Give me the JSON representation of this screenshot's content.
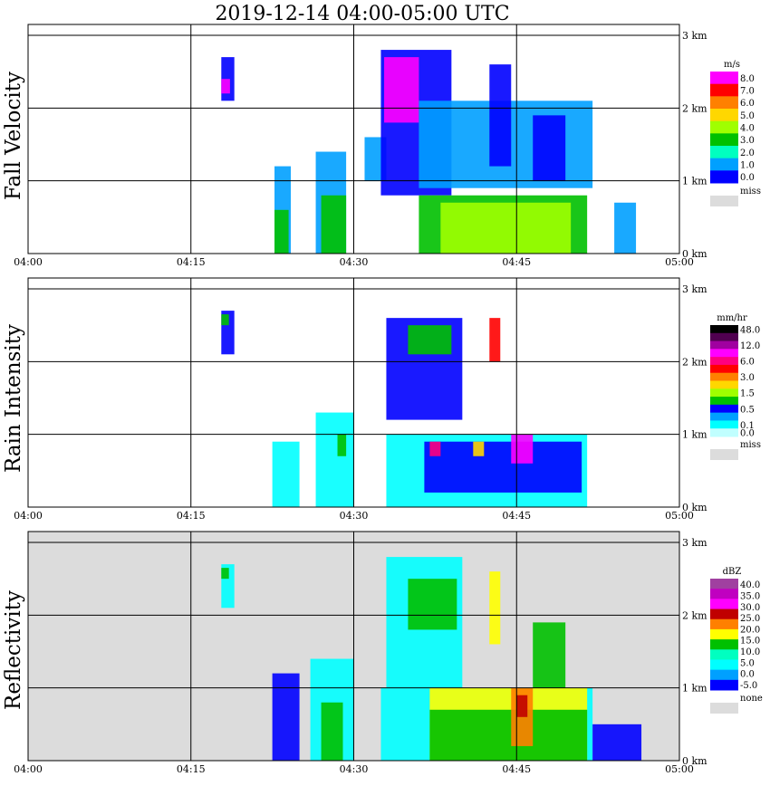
{
  "title": "2019-12-14   04:00-05:00 UTC",
  "x_ticks": [
    "04:00",
    "04:15",
    "04:30",
    "04:45",
    "05:00"
  ],
  "y_ticks": [
    "0 km",
    "1 km",
    "2 km",
    "3 km"
  ],
  "chart_data": [
    {
      "type": "heatmap",
      "ylabel": "Fall Velocity",
      "xlim": [
        "04:00",
        "05:00"
      ],
      "ylim_km": [
        0,
        3
      ],
      "grid": true,
      "colorbar": {
        "unit": "m/s",
        "labels": [
          "8.0",
          "7.0",
          "6.0",
          "5.0",
          "4.0",
          "3.0",
          "2.0",
          "1.0",
          "0.0"
        ],
        "colors": [
          "#ff00ff",
          "#ff0000",
          "#ff8000",
          "#ffd700",
          "#a0ff00",
          "#00c000",
          "#00ffc0",
          "#00a0ff",
          "#0000ff"
        ],
        "missing_label": "miss",
        "missing_color": "#dcdcdc"
      },
      "blobs": [
        {
          "t0": "04:17.8",
          "t1": "04:19.0",
          "h0": 2.1,
          "h1": 2.7,
          "color": "#0000ff"
        },
        {
          "t0": "04:17.8",
          "t1": "04:18.6",
          "h0": 2.2,
          "h1": 2.4,
          "color": "#ff00ff"
        },
        {
          "t0": "04:22.7",
          "t1": "04:24.2",
          "h0": 0.0,
          "h1": 1.2,
          "color": "#00a0ff"
        },
        {
          "t0": "04:22.7",
          "t1": "04:24.0",
          "h0": 0.0,
          "h1": 0.6,
          "color": "#00c000"
        },
        {
          "t0": "04:26.5",
          "t1": "04:29.3",
          "h0": 0.0,
          "h1": 1.4,
          "color": "#00a0ff"
        },
        {
          "t0": "04:27.0",
          "t1": "04:29.3",
          "h0": 0.0,
          "h1": 0.8,
          "color": "#00c000"
        },
        {
          "t0": "04:31.0",
          "t1": "04:33.0",
          "h0": 1.0,
          "h1": 1.6,
          "color": "#00a0ff"
        },
        {
          "t0": "04:32.5",
          "t1": "04:39.0",
          "h0": 0.8,
          "h1": 2.8,
          "color": "#0000ff"
        },
        {
          "t0": "04:32.8",
          "t1": "04:36.0",
          "h0": 1.8,
          "h1": 2.7,
          "color": "#ff00ff"
        },
        {
          "t0": "04:36.0",
          "t1": "04:52.0",
          "h0": 0.9,
          "h1": 2.1,
          "color": "#00a0ff"
        },
        {
          "t0": "04:36.0",
          "t1": "04:51.5",
          "h0": 0.0,
          "h1": 0.8,
          "color": "#00c000"
        },
        {
          "t0": "04:38.0",
          "t1": "04:50.0",
          "h0": 0.0,
          "h1": 0.7,
          "color": "#a0ff00"
        },
        {
          "t0": "04:42.5",
          "t1": "04:44.5",
          "h0": 1.2,
          "h1": 2.6,
          "color": "#0000ff"
        },
        {
          "t0": "04:46.5",
          "t1": "04:49.5",
          "h0": 1.0,
          "h1": 1.9,
          "color": "#0000ff"
        },
        {
          "t0": "04:54.0",
          "t1": "04:56.0",
          "h0": 0.0,
          "h1": 0.7,
          "color": "#00a0ff"
        }
      ]
    },
    {
      "type": "heatmap",
      "ylabel": "Rain Intensity",
      "xlim": [
        "04:00",
        "05:00"
      ],
      "ylim_km": [
        0,
        3
      ],
      "grid": true,
      "colorbar": {
        "unit": "mm/hr",
        "labels": [
          "48.0",
          "",
          "12.0",
          "",
          "6.0",
          "",
          "3.0",
          "",
          "1.5",
          "",
          "0.5",
          "",
          "0.1",
          "0.0"
        ],
        "colors": [
          "#000000",
          "#500050",
          "#a000a0",
          "#ff00ff",
          "#ff0080",
          "#ff0000",
          "#ff8000",
          "#ffd700",
          "#a0ff00",
          "#00c000",
          "#0000ff",
          "#00a0ff",
          "#00ffff",
          "#c0ffff"
        ],
        "missing_label": "miss",
        "missing_color": "#dcdcdc"
      },
      "blobs": [
        {
          "t0": "04:17.8",
          "t1": "04:19.0",
          "h0": 2.1,
          "h1": 2.7,
          "color": "#0000ff"
        },
        {
          "t0": "04:17.8",
          "t1": "04:18.5",
          "h0": 2.5,
          "h1": 2.65,
          "color": "#00c000"
        },
        {
          "t0": "04:22.5",
          "t1": "04:25.0",
          "h0": 0.0,
          "h1": 0.9,
          "color": "#00ffff"
        },
        {
          "t0": "04:26.5",
          "t1": "04:30.0",
          "h0": 0.0,
          "h1": 1.3,
          "color": "#00ffff"
        },
        {
          "t0": "04:28.5",
          "t1": "04:29.3",
          "h0": 0.7,
          "h1": 1.0,
          "color": "#00c000"
        },
        {
          "t0": "04:33.0",
          "t1": "04:51.5",
          "h0": 0.0,
          "h1": 1.0,
          "color": "#00ffff"
        },
        {
          "t0": "04:33.0",
          "t1": "04:40.0",
          "h0": 1.2,
          "h1": 2.6,
          "color": "#0000ff"
        },
        {
          "t0": "04:35.0",
          "t1": "04:39.0",
          "h0": 2.1,
          "h1": 2.5,
          "color": "#00c000"
        },
        {
          "t0": "04:36.5",
          "t1": "04:51.0",
          "h0": 0.2,
          "h1": 0.9,
          "color": "#0000ff"
        },
        {
          "t0": "04:37.0",
          "t1": "04:38.0",
          "h0": 0.7,
          "h1": 0.9,
          "color": "#ff0080"
        },
        {
          "t0": "04:41.0",
          "t1": "04:42.0",
          "h0": 0.7,
          "h1": 0.9,
          "color": "#ffd700"
        },
        {
          "t0": "04:44.5",
          "t1": "04:46.5",
          "h0": 0.6,
          "h1": 1.0,
          "color": "#ff00ff"
        },
        {
          "t0": "04:42.5",
          "t1": "04:43.5",
          "h0": 2.0,
          "h1": 2.6,
          "color": "#ff0000"
        }
      ]
    },
    {
      "type": "heatmap",
      "ylabel": "Reflectivity",
      "xlim": [
        "04:00",
        "05:00"
      ],
      "ylim_km": [
        0,
        3
      ],
      "grid": true,
      "background_color": "#dcdcdc",
      "colorbar": {
        "unit": "dBZ",
        "labels": [
          "40.0",
          "35.0",
          "30.0",
          "25.0",
          "20.0",
          "15.0",
          "10.0",
          "5.0",
          "0.0",
          "-5.0"
        ],
        "colors": [
          "#a040a0",
          "#c000c0",
          "#ff00ff",
          "#c00000",
          "#ff8000",
          "#ffff00",
          "#00c000",
          "#00ffc0",
          "#00ffff",
          "#00a0ff",
          "#0000ff"
        ],
        "missing_label": "none",
        "missing_color": "#dcdcdc"
      },
      "blobs": [
        {
          "t0": "04:17.8",
          "t1": "04:19.0",
          "h0": 2.1,
          "h1": 2.7,
          "color": "#00ffff"
        },
        {
          "t0": "04:17.8",
          "t1": "04:18.5",
          "h0": 2.5,
          "h1": 2.65,
          "color": "#00c000"
        },
        {
          "t0": "04:22.5",
          "t1": "04:25.0",
          "h0": 0.0,
          "h1": 1.2,
          "color": "#0000ff"
        },
        {
          "t0": "04:26.0",
          "t1": "04:30.0",
          "h0": 0.0,
          "h1": 1.4,
          "color": "#00ffff"
        },
        {
          "t0": "04:27.0",
          "t1": "04:29.0",
          "h0": 0.0,
          "h1": 0.8,
          "color": "#00c000"
        },
        {
          "t0": "04:32.5",
          "t1": "04:52.0",
          "h0": 0.0,
          "h1": 1.0,
          "color": "#00ffff"
        },
        {
          "t0": "04:33.0",
          "t1": "04:40.0",
          "h0": 1.0,
          "h1": 2.8,
          "color": "#00ffff"
        },
        {
          "t0": "04:35.0",
          "t1": "04:39.5",
          "h0": 1.8,
          "h1": 2.5,
          "color": "#00c000"
        },
        {
          "t0": "04:37.0",
          "t1": "04:51.5",
          "h0": 0.0,
          "h1": 1.0,
          "color": "#ffff00"
        },
        {
          "t0": "04:37.0",
          "t1": "04:51.5",
          "h0": 0.0,
          "h1": 0.7,
          "color": "#00c000"
        },
        {
          "t0": "04:44.5",
          "t1": "04:46.5",
          "h0": 0.2,
          "h1": 1.0,
          "color": "#ff8000"
        },
        {
          "t0": "04:45.0",
          "t1": "04:46.0",
          "h0": 0.6,
          "h1": 0.9,
          "color": "#c00000"
        },
        {
          "t0": "04:42.5",
          "t1": "04:43.5",
          "h0": 1.6,
          "h1": 2.6,
          "color": "#ffff00"
        },
        {
          "t0": "04:46.5",
          "t1": "04:49.5",
          "h0": 1.0,
          "h1": 1.9,
          "color": "#00c000"
        },
        {
          "t0": "04:52.0",
          "t1": "04:56.5",
          "h0": 0.0,
          "h1": 0.5,
          "color": "#0000ff"
        }
      ]
    }
  ]
}
